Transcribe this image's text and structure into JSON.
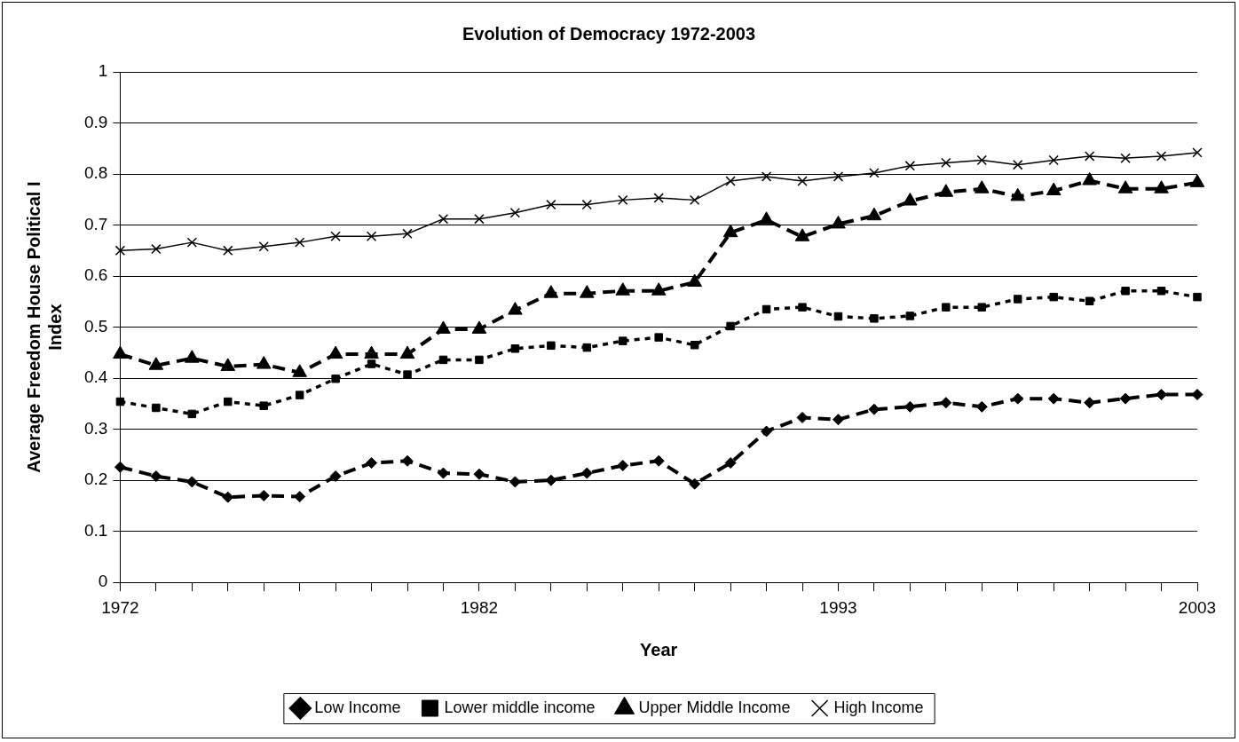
{
  "chart_data": {
    "type": "line",
    "title": "Evolution of Democracy 1972-2003",
    "xlabel": "Year",
    "ylabel": "Average Freedom House Political I Index",
    "categories": [
      "1972",
      null,
      null,
      null,
      null,
      null,
      null,
      null,
      null,
      null,
      "1982",
      null,
      null,
      null,
      null,
      null,
      null,
      null,
      null,
      null,
      "1993",
      null,
      null,
      null,
      null,
      null,
      null,
      null,
      null,
      null,
      "2003"
    ],
    "series": [
      {
        "name": "Low Income",
        "color": "#000000",
        "marker": "diamond",
        "line_style": "dashed",
        "values": [
          0.226,
          0.208,
          0.197,
          0.167,
          0.17,
          0.168,
          0.208,
          0.234,
          0.238,
          0.214,
          0.212,
          0.197,
          0.2,
          0.214,
          0.229,
          0.238,
          0.193,
          0.234,
          0.296,
          0.323,
          0.319,
          0.339,
          0.344,
          0.352,
          0.344,
          0.36,
          0.36,
          0.352,
          0.36,
          0.368,
          0.368
        ]
      },
      {
        "name": "Lower middle income",
        "color": "#000000",
        "marker": "square",
        "line_style": "dotted",
        "values": [
          0.354,
          0.342,
          0.33,
          0.354,
          0.346,
          0.367,
          0.399,
          0.428,
          0.407,
          0.436,
          0.436,
          0.458,
          0.464,
          0.46,
          0.473,
          0.48,
          0.465,
          0.502,
          0.535,
          0.539,
          0.521,
          0.517,
          0.522,
          0.539,
          0.539,
          0.555,
          0.559,
          0.551,
          0.571,
          0.571,
          0.559
        ]
      },
      {
        "name": "Upper Middle Income",
        "color": "#000000",
        "marker": "triangle",
        "line_style": "dashed",
        "values": [
          0.447,
          0.425,
          0.439,
          0.423,
          0.427,
          0.411,
          0.447,
          0.447,
          0.447,
          0.496,
          0.496,
          0.533,
          0.566,
          0.566,
          0.571,
          0.571,
          0.588,
          0.685,
          0.71,
          0.677,
          0.702,
          0.718,
          0.747,
          0.764,
          0.771,
          0.756,
          0.767,
          0.787,
          0.771,
          0.771,
          0.783
        ]
      },
      {
        "name": "High Income",
        "color": "#000000",
        "marker": "cross",
        "line_style": "solid",
        "values": [
          0.65,
          0.653,
          0.666,
          0.65,
          0.658,
          0.666,
          0.678,
          0.678,
          0.683,
          0.712,
          0.712,
          0.724,
          0.74,
          0.74,
          0.749,
          0.753,
          0.749,
          0.786,
          0.795,
          0.786,
          0.795,
          0.802,
          0.816,
          0.822,
          0.827,
          0.818,
          0.827,
          0.835,
          0.831,
          0.835,
          0.842
        ]
      }
    ],
    "ylim": [
      0,
      1
    ],
    "yticks": [
      0,
      0.1,
      0.2,
      0.3,
      0.4,
      0.5,
      0.6,
      0.7,
      0.8,
      0.9,
      1
    ],
    "grid": "y",
    "legend": "bottom"
  }
}
